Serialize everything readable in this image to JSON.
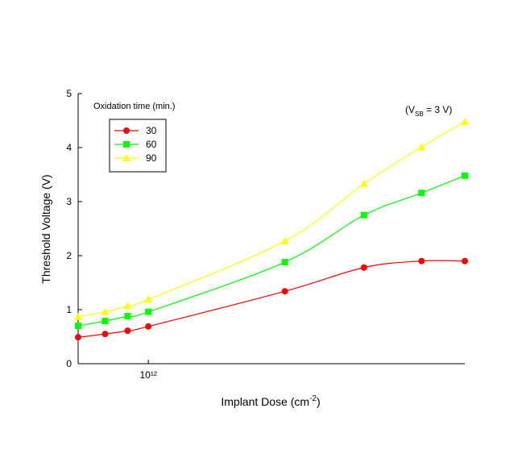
{
  "chart_data": {
    "type": "line",
    "x_label": {
      "text": "Implant Dose (cm",
      "superscript": "-2",
      "suffix": ")"
    },
    "y_label": "Threshold Voltage (V)",
    "annotation": {
      "prefix": "(V",
      "subscript": "SB",
      "suffix": " = 3 V)"
    },
    "legend_title": "Oxidation time (min.)",
    "x": [
      600000000000,
      730000000000,
      860000000000,
      1000000000000,
      2700000000000,
      4800000000000,
      7300000000000,
      10000000000000
    ],
    "series": [
      {
        "name": "30",
        "color": "#ff0000",
        "marker": "circle",
        "values": [
          0.49,
          0.55,
          0.61,
          0.69,
          1.34,
          1.78,
          1.9,
          1.9
        ]
      },
      {
        "name": "60",
        "color": "#00ff00",
        "marker": "square",
        "values": [
          0.7,
          0.79,
          0.88,
          0.96,
          1.88,
          2.75,
          3.16,
          3.48
        ]
      },
      {
        "name": "90",
        "color": "#ffff00",
        "marker": "triangle",
        "values": [
          0.87,
          0.96,
          1.07,
          1.19,
          2.27,
          3.33,
          4.01,
          4.48
        ]
      }
    ],
    "xscale": "log",
    "xlim": [
      600000000000,
      10000000000000
    ],
    "xticks": [
      {
        "value": 1000000000000,
        "label": "10¹²"
      }
    ],
    "ylim": [
      0,
      5
    ],
    "yticks": [
      0,
      1,
      2,
      3,
      4,
      5
    ]
  }
}
